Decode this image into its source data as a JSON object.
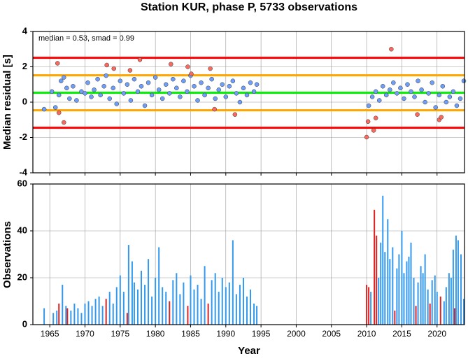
{
  "chart_data": [
    {
      "type": "scatter",
      "title": "Station KUR, phase P, 5733 observations",
      "ylabel": "Median residual [s]",
      "annotation": "median = 0.53, smad = 0.99",
      "xlim": [
        1962.6,
        2023.9
      ],
      "xticks": [
        1965,
        1970,
        1975,
        1980,
        1985,
        1990,
        1995,
        2000,
        2005,
        2010,
        2015,
        2020
      ],
      "ylim": [
        -4,
        4
      ],
      "yticks": [
        -4,
        -2,
        0,
        2,
        4
      ],
      "grid": true,
      "hlines": [
        {
          "value": 2.51,
          "color": "#ff0000"
        },
        {
          "value": 1.52,
          "color": "#ffa500"
        },
        {
          "value": 0.53,
          "color": "#00ee00"
        },
        {
          "value": -0.46,
          "color": "#ffa500"
        },
        {
          "value": -1.45,
          "color": "#ff0000"
        }
      ],
      "series": [
        {
          "color": "#6f9ef8",
          "x": [
            1964.2,
            1965.3,
            1965.8,
            1966.3,
            1966.6,
            1967,
            1967.4,
            1967.8,
            1968.3,
            1968.8,
            1969.5,
            1970,
            1970.4,
            1970.9,
            1971.3,
            1971.8,
            1972.2,
            1972.7,
            1973,
            1973.5,
            1974,
            1974.5,
            1975,
            1975.5,
            1976,
            1976.5,
            1977,
            1977.5,
            1978,
            1978.5,
            1979,
            1979.5,
            1980,
            1980.5,
            1981,
            1981.5,
            1982,
            1982.5,
            1983,
            1983.5,
            1984,
            1984.5,
            1985,
            1985.5,
            1986,
            1986.5,
            1987,
            1987.5,
            1988,
            1988.5,
            1989,
            1989.5,
            1990,
            1990.5,
            1991,
            1991.5,
            1992,
            1992.5,
            1993,
            1993.5,
            1994,
            1994.4,
            2010.3,
            2010.8,
            2011.3,
            2011.8,
            2012.3,
            2012.8,
            2013.3,
            2013.8,
            2014.3,
            2014.8,
            2015.3,
            2015.8,
            2016.3,
            2016.8,
            2017.3,
            2017.8,
            2018.3,
            2018.8,
            2019.3,
            2019.8,
            2020.3,
            2020.8,
            2021.3,
            2021.8,
            2022.3,
            2022.8,
            2023.3,
            2023.8
          ],
          "values": [
            -0.4,
            0.6,
            -0.3,
            0.4,
            1.2,
            1.4,
            0.8,
            0.2,
            0.9,
            0.1,
            0.6,
            0.5,
            1.1,
            0.3,
            0.7,
            1.3,
            0.4,
            0.9,
            1.5,
            0.2,
            0.8,
            -0.1,
            1.2,
            0.5,
            1.0,
            0.1,
            1.3,
            0.6,
            0.9,
            -0.2,
            1.1,
            0.4,
            1.4,
            0.7,
            0.2,
            1.0,
            0.5,
            1.3,
            0.8,
            0.3,
            1.2,
            0.6,
            1.5,
            0.9,
            0.1,
            1.1,
            0.4,
            0.8,
            1.3,
            0.2,
            0.7,
            1.0,
            0.3,
            0.9,
            1.2,
            0.5,
            0.0,
            0.8,
            0.4,
            1.1,
            0.6,
            1.0,
            -0.2,
            0.3,
            0.6,
            0.1,
            0.9,
            0.4,
            0.7,
            1.1,
            0.5,
            0.8,
            0.2,
            1.0,
            0.6,
            0.3,
            1.2,
            0.7,
            0.0,
            0.5,
            1.1,
            -0.3,
            0.4,
            0.9,
            0.0,
            0.3,
            0.6,
            -0.2,
            0.2,
            1.2
          ]
        },
        {
          "color": "#f86a5e",
          "x": [
            1966.1,
            1966.3,
            1967,
            1973.1,
            1974.1,
            1976.4,
            1977.8,
            1982.2,
            1984.6,
            1985.1,
            1987.8,
            1988.4,
            1991.3,
            2010.0,
            2010.2,
            2011,
            2011.3,
            2013.5,
            2017.2,
            2020.3,
            2020.6
          ],
          "values": [
            2.2,
            -0.6,
            -1.15,
            2.1,
            1.9,
            1.8,
            2.4,
            2.15,
            2.0,
            1.6,
            1.9,
            -0.4,
            -0.7,
            -1.98,
            -1.1,
            -1.6,
            -0.9,
            3.0,
            -0.7,
            -1.0,
            -0.85
          ]
        }
      ]
    },
    {
      "type": "bar",
      "ylabel": "Observations",
      "xlabel": "Year",
      "xlim": [
        1962.6,
        2023.9
      ],
      "xticks": [
        1965,
        1970,
        1975,
        1980,
        1985,
        1990,
        1995,
        2000,
        2005,
        2010,
        2015,
        2020
      ],
      "ylim": [
        0,
        60
      ],
      "yticks": [
        0,
        20,
        40,
        60
      ],
      "grid": true,
      "series": [
        {
          "color": "#3399ee",
          "x": [
            1964.2,
            1965.5,
            1966,
            1966.8,
            1967.3,
            1968,
            1968.5,
            1969,
            1969.5,
            1970,
            1970.5,
            1971,
            1971.5,
            1972,
            1972.5,
            1973.5,
            1974,
            1974.5,
            1975,
            1975.5,
            1976.2,
            1976.7,
            1977,
            1977.5,
            1978,
            1978.5,
            1979,
            1979.5,
            1980,
            1980.5,
            1981,
            1981.5,
            1982.5,
            1983,
            1983.5,
            1984,
            1985,
            1985.5,
            1986,
            1986.5,
            1987,
            1988,
            1988.5,
            1989,
            1989.5,
            1990,
            1990.5,
            1991,
            1991.5,
            1992,
            1992.5,
            1993,
            1993.5,
            1994,
            1994.4,
            2010.6,
            2011.7,
            2012,
            2012.3,
            2012.6,
            2013,
            2013.3,
            2013.7,
            2014.3,
            2014.6,
            2015,
            2015.3,
            2015.7,
            2016,
            2016.3,
            2016.7,
            2017.3,
            2017.7,
            2018,
            2018.3,
            2018.7,
            2019.3,
            2019.7,
            2020,
            2021,
            2021.3,
            2021.7,
            2022,
            2022.3,
            2022.7,
            2023,
            2023.4,
            2023.8
          ],
          "values": [
            7,
            5,
            6,
            17,
            8,
            6,
            9,
            7,
            5,
            9,
            10,
            8,
            11,
            12,
            8,
            14,
            9,
            16,
            21,
            14,
            34,
            27,
            18,
            15,
            23,
            17,
            28,
            12,
            20,
            33,
            16,
            14,
            19,
            22,
            13,
            18,
            21,
            15,
            17,
            11,
            25,
            19,
            22,
            14,
            20,
            16,
            18,
            36,
            13,
            17,
            20,
            12,
            15,
            9,
            8,
            14,
            20,
            35,
            55,
            31,
            45,
            28,
            33,
            24,
            30,
            40,
            22,
            27,
            29,
            35,
            20,
            18,
            25,
            22,
            30,
            15,
            19,
            21,
            14,
            10,
            16,
            22,
            20,
            32,
            38,
            36,
            30,
            11
          ]
        },
        {
          "color": "#dd2222",
          "x": [
            1966.3,
            1967.5,
            1973,
            1976,
            1982,
            1984.6,
            1987.5,
            2010,
            2010.3,
            2011.1,
            2011.4,
            2014,
            2017,
            2019,
            2020.5,
            2022.5
          ],
          "values": [
            9,
            7,
            11,
            5,
            10,
            8,
            9,
            17,
            16,
            49,
            38,
            6,
            8,
            9,
            12,
            7
          ]
        }
      ]
    }
  ]
}
